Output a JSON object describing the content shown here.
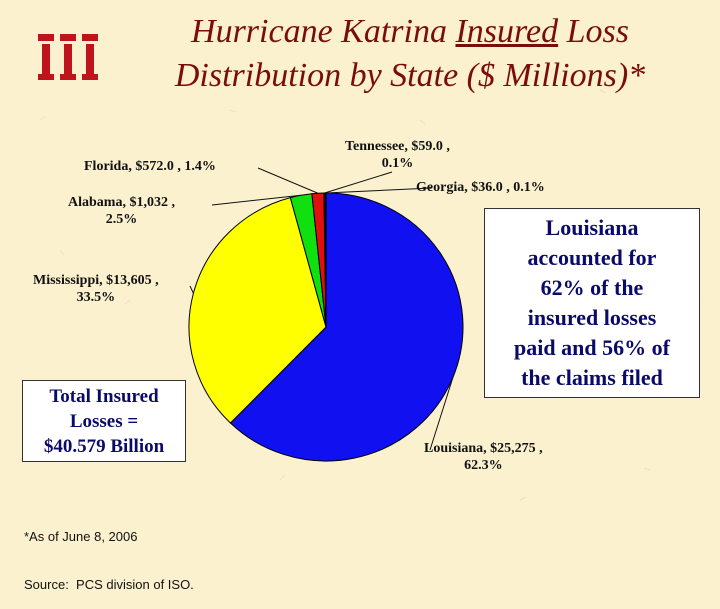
{
  "title": {
    "line1_prefix": "Hurricane Katrina ",
    "line1_underlined": "Insured",
    "line1_suffix": " Loss",
    "line2": "Distribution by State ($ Millions)*"
  },
  "logo_name": "iii-logo",
  "colors": {
    "background": "#fbf1cf",
    "title": "#7b0c0c",
    "logo": "#c0141c",
    "callout_text": "#0a0a6a"
  },
  "chart_data": {
    "type": "pie",
    "title": "",
    "slices": [
      {
        "state": "Louisiana",
        "value": 25275,
        "percent": 62.3,
        "color": "#1010f0",
        "label": "Louisiana, $25,275 ,",
        "label2": "62.3%"
      },
      {
        "state": "Mississippi",
        "value": 13605,
        "percent": 33.5,
        "color": "#ffff00",
        "label": "Mississippi, $13,605 ,",
        "label2": "33.5%"
      },
      {
        "state": "Alabama",
        "value": 1032,
        "percent": 2.5,
        "color": "#10e010",
        "label": "Alabama, $1,032 ,",
        "label2": "2.5%"
      },
      {
        "state": "Florida",
        "value": 572.0,
        "percent": 1.4,
        "color": "#e01010",
        "label": "Florida, $572.0 , 1.4%",
        "label2": ""
      },
      {
        "state": "Tennessee",
        "value": 59.0,
        "percent": 0.1,
        "color": "#7a2a00",
        "label": "Tennessee, $59.0 ,",
        "label2": "0.1%"
      },
      {
        "state": "Georgia",
        "value": 36.0,
        "percent": 0.1,
        "color": "#20a020",
        "label": "Georgia, $36.0 , 0.1%",
        "label2": ""
      }
    ]
  },
  "total_box": {
    "line1": "Total Insured",
    "line2": "Losses =",
    "line3": "$40.579 Billion"
  },
  "callout": {
    "line1": "Louisiana",
    "line2": "accounted for",
    "line3": "62% of the",
    "line4": "insured losses",
    "line5": "paid and 56% of",
    "line6": "the claims filed"
  },
  "footnote": {
    "line1": "*As of June 8, 2006",
    "line2": "Source:  PCS division of ISO."
  }
}
